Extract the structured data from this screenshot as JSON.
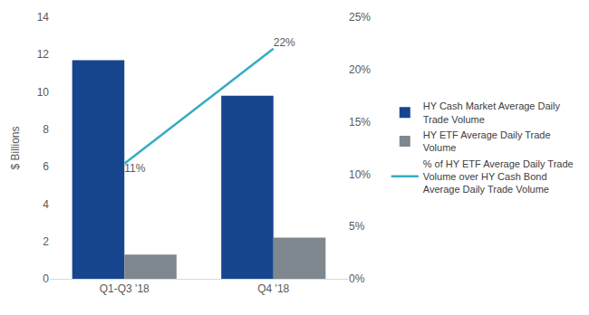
{
  "chart_data": {
    "type": "bar",
    "categories": [
      "Q1-Q3 '18",
      "Q4 '18"
    ],
    "y_label": "$ Billions",
    "ylim": [
      0,
      14
    ],
    "yticks": [
      0,
      2,
      4,
      6,
      8,
      10,
      12,
      14
    ],
    "y2lim": [
      0,
      25
    ],
    "y2ticks": [
      {
        "value": 0,
        "label": "0%"
      },
      {
        "value": 5,
        "label": "5%"
      },
      {
        "value": 10,
        "label": "10%"
      },
      {
        "value": 15,
        "label": "15%"
      },
      {
        "value": 20,
        "label": "20%"
      },
      {
        "value": 25,
        "label": "25%"
      }
    ],
    "grid": false,
    "legend": "right",
    "series": [
      {
        "name": "HY Cash Market Average Daily Trade Volume",
        "type": "bar",
        "color": "#17468f",
        "values": [
          11.7,
          9.8
        ]
      },
      {
        "name": "HY ETF Average Daily Trade Volume",
        "type": "bar",
        "color": "#7f878f",
        "values": [
          1.3,
          2.2
        ]
      },
      {
        "name": "% of HY ETF Average Daily Trade Volume over HY Cash Bond Average Daily Trade Volume",
        "type": "line",
        "axis": "y2",
        "color": "#36adc2",
        "line_style": "solid",
        "data_labels": true,
        "values": [
          11,
          22
        ],
        "value_labels": [
          "11%",
          "22%"
        ]
      }
    ]
  }
}
